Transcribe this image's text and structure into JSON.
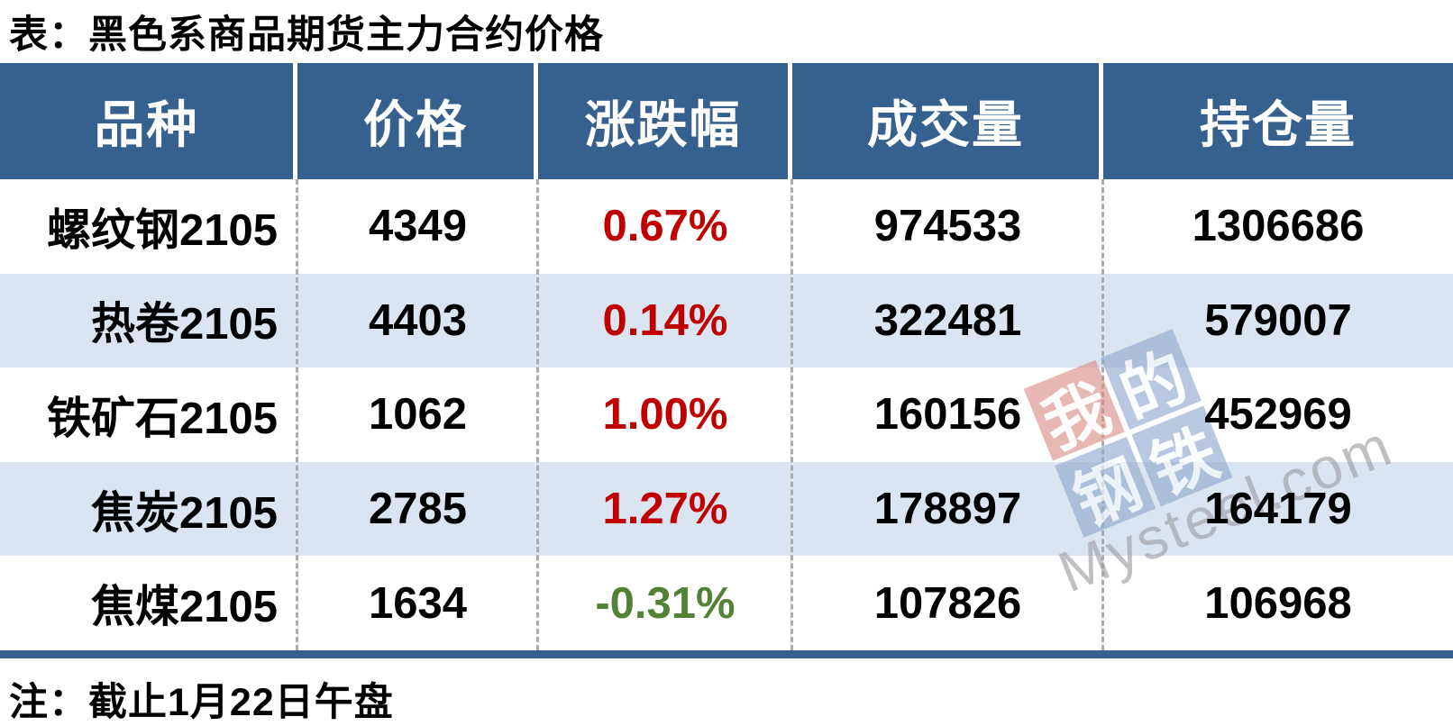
{
  "page": {
    "title": "表：黑色系商品期货主力合约价格",
    "note": "注：截止1月22日午盘"
  },
  "colors": {
    "header_bg": "#36618F",
    "row_alt_bg": "#DBE5F1",
    "up_red": "#C00000",
    "down_green": "#538135",
    "divider_gray": "#ABABAB"
  },
  "table": {
    "columns": [
      "品种",
      "价格",
      "涨跌幅",
      "成交量",
      "持仓量"
    ],
    "rows": [
      {
        "name": "螺纹钢2105",
        "price": "4349",
        "change": "0.67%",
        "trend": "up",
        "volume": "974533",
        "open_interest": "1306686"
      },
      {
        "name": "热卷2105",
        "price": "4403",
        "change": "0.14%",
        "trend": "up",
        "volume": "322481",
        "open_interest": "579007"
      },
      {
        "name": "铁矿石2105",
        "price": "1062",
        "change": "1.00%",
        "trend": "up",
        "volume": "160156",
        "open_interest": "452969"
      },
      {
        "name": "焦炭2105",
        "price": "2785",
        "change": "1.27%",
        "trend": "up",
        "volume": "178897",
        "open_interest": "164179"
      },
      {
        "name": "焦煤2105",
        "price": "1634",
        "change": "-0.31%",
        "trend": "down",
        "volume": "107826",
        "open_interest": "106968"
      }
    ]
  },
  "watermark": {
    "squares": [
      "我",
      "的",
      "钢",
      "铁"
    ],
    "text": "Mysteel.com"
  },
  "chart_data": {
    "type": "table",
    "title": "表：黑色系商品期货主力合约价格",
    "columns": [
      "品种",
      "价格",
      "涨跌幅",
      "成交量",
      "持仓量"
    ],
    "rows": [
      [
        "螺纹钢2105",
        4349,
        "0.67%",
        974533,
        1306686
      ],
      [
        "热卷2105",
        4403,
        "0.14%",
        322481,
        579007
      ],
      [
        "铁矿石2105",
        1062,
        "1.00%",
        160156,
        452969
      ],
      [
        "焦炭2105",
        2785,
        "1.27%",
        178897,
        164179
      ],
      [
        "焦煤2105",
        1634,
        "-0.31%",
        107826,
        106968
      ]
    ],
    "note": "注：截止1月22日午盘"
  }
}
